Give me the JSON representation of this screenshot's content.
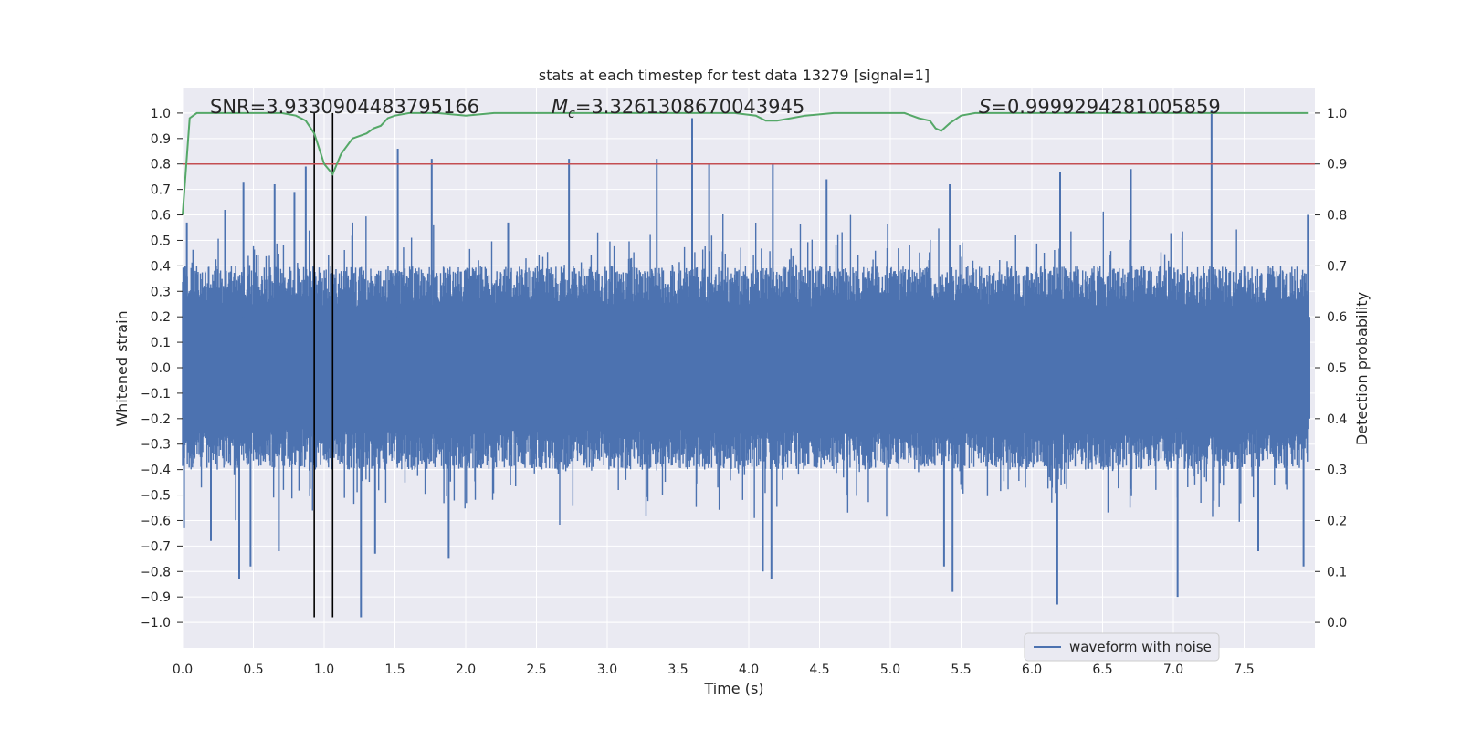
{
  "chart_data": {
    "type": "line",
    "title": "stats at each timestep for test data 13279 [signal=1]",
    "xlabel": "Time (s)",
    "ylabel": "Whitened strain",
    "y2label": "Detection probability",
    "xlim": [
      0,
      8
    ],
    "ylim": [
      -1.1,
      1.1
    ],
    "y2lim": [
      -0.05,
      1.05
    ],
    "xticks": [
      "0.0",
      "0.5",
      "1.0",
      "1.5",
      "2.0",
      "2.5",
      "3.0",
      "3.5",
      "4.0",
      "4.5",
      "5.0",
      "5.5",
      "6.0",
      "6.5",
      "7.0",
      "7.5"
    ],
    "xtick_values": [
      0,
      0.5,
      1,
      1.5,
      2,
      2.5,
      3,
      3.5,
      4,
      4.5,
      5,
      5.5,
      6,
      6.5,
      7,
      7.5
    ],
    "yticks": [
      "1.0",
      "0.9",
      "0.8",
      "0.7",
      "0.6",
      "0.5",
      "0.4",
      "0.3",
      "0.2",
      "0.1",
      "0.0",
      "−0.1",
      "−0.2",
      "−0.3",
      "−0.4",
      "−0.5",
      "−0.6",
      "−0.7",
      "−0.8",
      "−0.9",
      "−1.0"
    ],
    "ytick_values": [
      1,
      0.9,
      0.8,
      0.7,
      0.6,
      0.5,
      0.4,
      0.3,
      0.2,
      0.1,
      0,
      -0.1,
      -0.2,
      -0.3,
      -0.4,
      -0.5,
      -0.6,
      -0.7,
      -0.8,
      -0.9,
      -1
    ],
    "y2ticks": [
      "1.0",
      "0.9",
      "0.8",
      "0.7",
      "0.6",
      "0.5",
      "0.4",
      "0.3",
      "0.2",
      "0.1",
      "0.0"
    ],
    "y2tick_values": [
      1,
      0.9,
      0.8,
      0.7,
      0.6,
      0.5,
      0.4,
      0.3,
      0.2,
      0.1,
      0
    ],
    "annotations": {
      "snr": "SNR=3.9330904483795166",
      "mc_symbol": "M",
      "mc_subscript": "c",
      "mc_value": "=3.3261308670043945",
      "s_symbol": "S",
      "s_value": "=0.9999294281005859"
    },
    "legend": {
      "label": "waveform with noise",
      "position": "lower-right"
    },
    "threshold": {
      "y2": 0.9,
      "color": "#c44e52"
    },
    "markers": {
      "t_start": 0.93,
      "t_end": 1.06,
      "y_min": -0.98,
      "y_max": 1.0
    },
    "strain_series": {
      "name": "waveform with noise",
      "color": "#4c72b0",
      "envelope_typical": 0.32,
      "peaks": [
        {
          "t": 0.03,
          "v": 0.57
        },
        {
          "t": 0.3,
          "v": 0.62
        },
        {
          "t": 0.43,
          "v": 0.73
        },
        {
          "t": 0.65,
          "v": 0.72
        },
        {
          "t": 0.79,
          "v": 0.69
        },
        {
          "t": 0.87,
          "v": 0.79
        },
        {
          "t": 1.2,
          "v": 0.57
        },
        {
          "t": 1.52,
          "v": 0.86
        },
        {
          "t": 1.76,
          "v": 0.82
        },
        {
          "t": 2.3,
          "v": 0.57
        },
        {
          "t": 2.73,
          "v": 0.82
        },
        {
          "t": 3.35,
          "v": 0.82
        },
        {
          "t": 3.6,
          "v": 0.98
        },
        {
          "t": 3.72,
          "v": 0.8
        },
        {
          "t": 4.17,
          "v": 0.8
        },
        {
          "t": 4.55,
          "v": 0.74
        },
        {
          "t": 5.42,
          "v": 0.72
        },
        {
          "t": 6.2,
          "v": 0.77
        },
        {
          "t": 6.7,
          "v": 0.78
        },
        {
          "t": 7.27,
          "v": 1.01
        },
        {
          "t": 7.95,
          "v": 0.6
        }
      ],
      "troughs": [
        {
          "t": 0.01,
          "v": -0.63
        },
        {
          "t": 0.2,
          "v": -0.68
        },
        {
          "t": 0.4,
          "v": -0.83
        },
        {
          "t": 0.48,
          "v": -0.78
        },
        {
          "t": 0.68,
          "v": -0.72
        },
        {
          "t": 1.26,
          "v": -0.98
        },
        {
          "t": 1.36,
          "v": -0.73
        },
        {
          "t": 1.88,
          "v": -0.75
        },
        {
          "t": 4.1,
          "v": -0.8
        },
        {
          "t": 4.16,
          "v": -0.83
        },
        {
          "t": 5.38,
          "v": -0.78
        },
        {
          "t": 5.44,
          "v": -0.88
        },
        {
          "t": 6.18,
          "v": -0.93
        },
        {
          "t": 7.03,
          "v": -0.9
        },
        {
          "t": 7.6,
          "v": -0.72
        },
        {
          "t": 7.92,
          "v": -0.78
        }
      ]
    },
    "probability_series": {
      "name": "Detection probability",
      "color": "#55a868",
      "t": [
        0.0,
        0.05,
        0.1,
        0.2,
        0.4,
        0.7,
        0.8,
        0.87,
        0.93,
        1.0,
        1.06,
        1.12,
        1.2,
        1.3,
        1.35,
        1.4,
        1.45,
        1.5,
        1.6,
        1.8,
        2.0,
        2.2,
        2.5,
        3.0,
        3.5,
        3.9,
        4.05,
        4.12,
        4.2,
        4.3,
        4.4,
        4.6,
        5.0,
        5.1,
        5.2,
        5.28,
        5.32,
        5.36,
        5.42,
        5.5,
        5.6,
        6.0,
        6.5,
        7.0,
        7.5,
        7.95
      ],
      "p": [
        0.8,
        0.99,
        1.0,
        1.0,
        1.0,
        1.0,
        0.995,
        0.985,
        0.96,
        0.9,
        0.88,
        0.92,
        0.95,
        0.96,
        0.97,
        0.975,
        0.99,
        0.995,
        1.0,
        1.0,
        0.995,
        1.0,
        1.0,
        1.0,
        1.0,
        1.0,
        0.995,
        0.985,
        0.985,
        0.99,
        0.995,
        1.0,
        1.0,
        1.0,
        0.99,
        0.985,
        0.97,
        0.965,
        0.98,
        0.995,
        1.0,
        1.0,
        1.0,
        1.0,
        1.0,
        1.0
      ]
    }
  }
}
